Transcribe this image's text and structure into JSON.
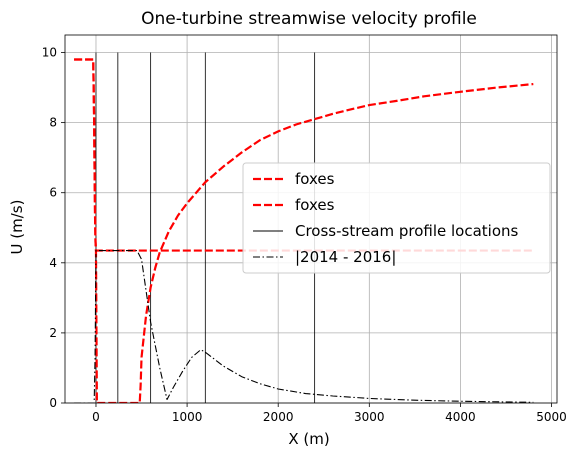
{
  "chart_data": {
    "type": "line",
    "title": "One-turbine streamwise velocity profile",
    "xlabel": "X (m)",
    "ylabel": "U (m/s)",
    "xlim": [
      -340,
      5060
    ],
    "ylim": [
      0,
      10.5
    ],
    "xticks": [
      0,
      1000,
      2000,
      3000,
      4000,
      5000
    ],
    "yticks": [
      0,
      2,
      4,
      6,
      8,
      10
    ],
    "grid": true,
    "legend_position": "center-right",
    "series": [
      {
        "name": "foxes",
        "style": "dashed",
        "color": "#ff0000",
        "x": [
          -240,
          -30,
          -20,
          -15,
          -10,
          -5,
          0,
          10,
          50,
          100,
          200,
          300,
          500,
          700,
          800,
          900,
          950,
          980,
          1000,
          1050,
          1100,
          1150,
          1200,
          1300,
          1400,
          1500,
          1700,
          2000,
          2500,
          3000,
          3500,
          4000,
          4500,
          4800
        ],
        "y": [
          9.8,
          9.8,
          8.0,
          6.5,
          5.3,
          4.6,
          4.35,
          4.35,
          4.35,
          4.35,
          4.35,
          4.35,
          4.35,
          4.35,
          4.35,
          4.35,
          4.35,
          4.35,
          4.35,
          4.35,
          4.35,
          4.35,
          4.35,
          4.35,
          4.35,
          4.35,
          4.35,
          4.35,
          4.35,
          4.35,
          4.35,
          4.35,
          4.35,
          4.35
        ]
      },
      {
        "name": "foxes",
        "style": "dashed",
        "color": "#ff0000",
        "x": [
          -240,
          -30,
          -20,
          -15,
          -10,
          -5,
          0,
          10,
          20,
          480,
          490,
          500,
          550,
          600,
          650,
          700,
          800,
          900,
          1000,
          1100,
          1200,
          1400,
          1600,
          1800,
          2000,
          2200,
          2400,
          2600,
          2800,
          3000,
          3300,
          3600,
          4000,
          4400,
          4800
        ],
        "y": [
          9.8,
          9.8,
          8.0,
          6.5,
          5.3,
          4.6,
          4.35,
          0.0,
          0.0,
          0.0,
          0.5,
          1.3,
          2.5,
          3.3,
          3.85,
          4.3,
          4.9,
          5.35,
          5.7,
          6.0,
          6.3,
          6.75,
          7.15,
          7.5,
          7.75,
          7.95,
          8.1,
          8.25,
          8.38,
          8.5,
          8.62,
          8.75,
          8.88,
          9.0,
          9.1
        ]
      },
      {
        "name": "|2014 - 2016|",
        "style": "dashdot",
        "color": "#000000",
        "x": [
          -240,
          -20,
          -10,
          0,
          10,
          50,
          100,
          300,
          450,
          500,
          600,
          700,
          780,
          850,
          950,
          1050,
          1150,
          1200,
          1300,
          1400,
          1600,
          1800,
          2000,
          2300,
          2600,
          3000,
          3500,
          4000,
          4500,
          4800
        ],
        "y": [
          0.0,
          0.0,
          1.3,
          4.35,
          4.35,
          4.35,
          4.35,
          4.35,
          4.35,
          4.1,
          2.3,
          1.0,
          0.1,
          0.45,
          0.9,
          1.3,
          1.52,
          1.45,
          1.25,
          1.05,
          0.75,
          0.55,
          0.4,
          0.27,
          0.2,
          0.13,
          0.08,
          0.05,
          0.03,
          0.02
        ]
      }
    ],
    "profile_locations": {
      "name": "Cross-stream profile locations",
      "x": [
        0,
        240,
        600,
        1200,
        2400
      ],
      "y_top": 10
    },
    "colors": {
      "foxes": "#ff0000",
      "reference": "#000000",
      "grid": "#b0b0b0"
    }
  }
}
